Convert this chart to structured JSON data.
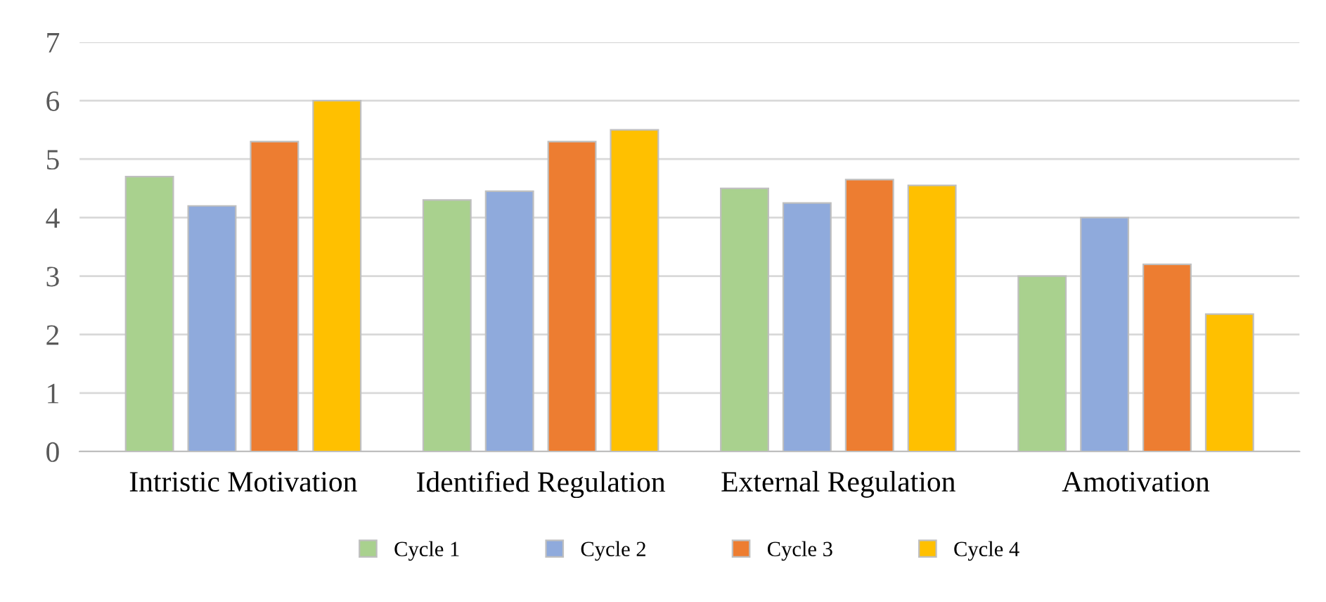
{
  "chart_data": {
    "type": "bar",
    "categories": [
      "Intristic Motivation",
      "Identified Regulation",
      "External Regulation",
      "Amotivation"
    ],
    "series": [
      {
        "name": "Cycle 1",
        "color": "#a9d18e",
        "values": [
          4.7,
          4.3,
          4.5,
          3.0
        ]
      },
      {
        "name": "Cycle 2",
        "color": "#8faadc",
        "values": [
          4.2,
          4.45,
          4.25,
          4.0
        ]
      },
      {
        "name": "Cycle 3",
        "color": "#ed7d31",
        "values": [
          5.3,
          5.3,
          4.65,
          3.2
        ]
      },
      {
        "name": "Cycle 4",
        "color": "#ffc000",
        "values": [
          6.0,
          5.5,
          4.55,
          2.35
        ]
      }
    ],
    "ylim": [
      0,
      7
    ],
    "yticks": [
      0,
      1,
      2,
      3,
      4,
      5,
      6,
      7
    ],
    "grid": "y",
    "legend": "bottom"
  }
}
